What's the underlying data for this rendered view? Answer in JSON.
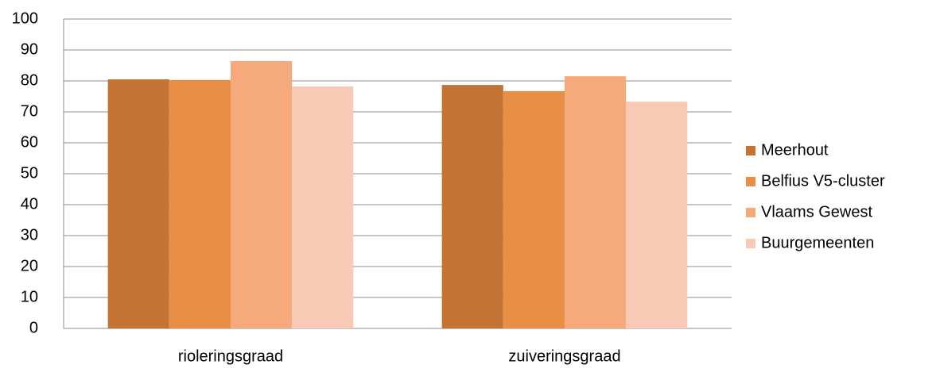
{
  "chart_data": {
    "type": "bar",
    "categories": [
      "rioleringsgraad",
      "zuiveringsgraad"
    ],
    "series": [
      {
        "name": "Meerhout",
        "color": "#c37434",
        "values": [
          80.5,
          78.7
        ]
      },
      {
        "name": "Belfius V5-cluster",
        "color": "#e88f45",
        "values": [
          80.3,
          76.7
        ]
      },
      {
        "name": "Vlaams Gewest",
        "color": "#f6a97a",
        "values": [
          86.4,
          81.5
        ]
      },
      {
        "name": "Buurgemeenten",
        "color": "#f8c9b4",
        "values": [
          78.2,
          73.3
        ]
      }
    ],
    "ylim": [
      0,
      100
    ],
    "yticks": [
      0,
      10,
      20,
      30,
      40,
      50,
      60,
      70,
      80,
      90,
      100
    ],
    "grid": true,
    "legend": "right"
  }
}
